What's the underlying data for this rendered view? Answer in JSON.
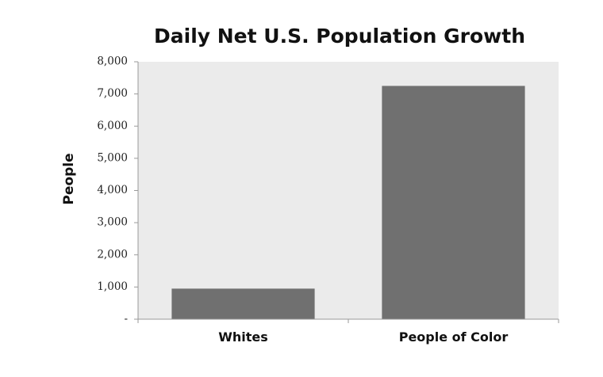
{
  "chart_data": {
    "type": "bar",
    "title": "Daily Net U.S. Population Growth",
    "xlabel": "",
    "ylabel": "People",
    "categories": [
      "Whites",
      "People of Color"
    ],
    "values": [
      950,
      7250
    ],
    "ylim": [
      0,
      8000
    ],
    "yticks": [
      0,
      1000,
      2000,
      3000,
      4000,
      5000,
      6000,
      7000,
      8000
    ],
    "ytick_labels": [
      "-",
      "1,000",
      "2,000",
      "3,000",
      "4,000",
      "5,000",
      "6,000",
      "7,000",
      "8,000"
    ],
    "grid": false,
    "legend": "none",
    "colors": {
      "plot_background": "#ebebeb",
      "bar": "#707070",
      "axis": "#9a9a9a"
    }
  }
}
